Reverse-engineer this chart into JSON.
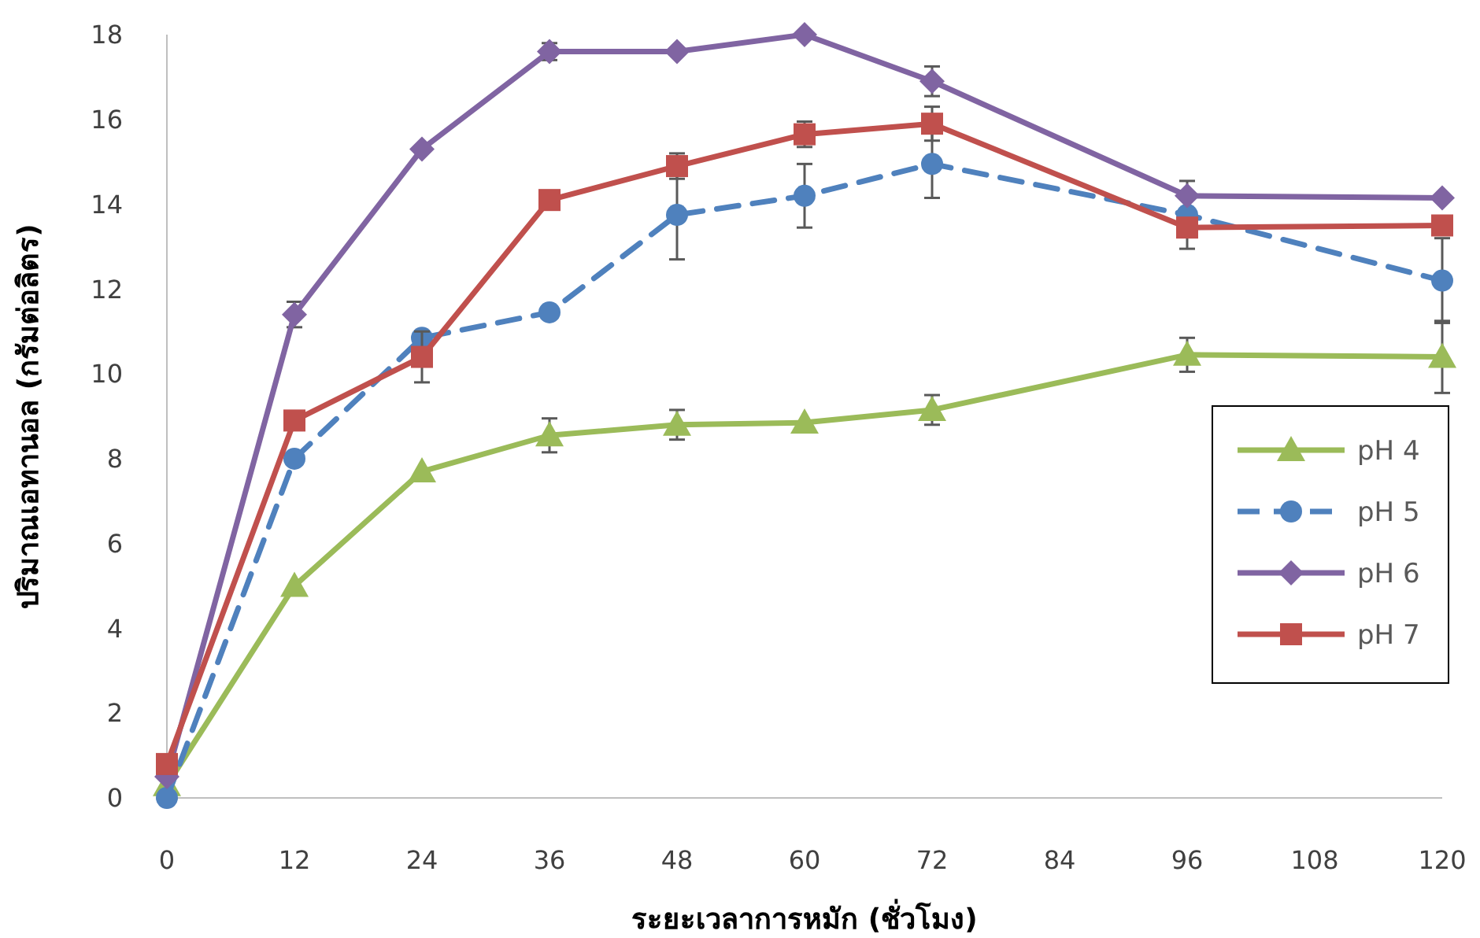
{
  "chart_data": {
    "type": "line",
    "xlabel": "ระยะเวลาการหมัก (ชั่วโมง)",
    "ylabel": "ปริมาณเอทานอล (กรัมต่อลิตร)",
    "x": [
      0,
      12,
      24,
      36,
      48,
      60,
      72,
      96,
      120
    ],
    "xlim": [
      0,
      120
    ],
    "xticks": [
      0,
      12,
      24,
      36,
      48,
      60,
      72,
      84,
      96,
      108,
      120
    ],
    "ylim": [
      0,
      18
    ],
    "yticks": [
      0,
      2,
      4,
      6,
      8,
      10,
      12,
      14,
      16,
      18
    ],
    "grid": false,
    "legend": "right",
    "series": [
      {
        "name": "pH 4",
        "color": "#9bbb59",
        "marker": "triangle",
        "line_style": "solid",
        "values": [
          0.3,
          5.0,
          7.7,
          8.55,
          8.8,
          8.85,
          9.15,
          10.45,
          10.4
        ],
        "errors": [
          null,
          null,
          null,
          0.4,
          0.35,
          null,
          0.35,
          0.4,
          0.85
        ]
      },
      {
        "name": "pH 5",
        "color": "#4f81bd",
        "marker": "circle",
        "line_style": "dashed",
        "values": [
          0,
          8.0,
          10.85,
          11.45,
          13.75,
          14.2,
          14.95,
          13.75,
          12.2
        ],
        "errors": [
          null,
          null,
          null,
          null,
          1.05,
          0.75,
          0.8,
          0.8,
          1.0
        ]
      },
      {
        "name": "pH 6",
        "color": "#8064a2",
        "marker": "diamond",
        "line_style": "solid",
        "values": [
          0.5,
          11.4,
          15.3,
          17.6,
          17.6,
          18.0,
          16.9,
          14.2,
          14.15
        ],
        "errors": [
          null,
          0.3,
          null,
          0.2,
          null,
          null,
          0.35,
          null,
          null
        ]
      },
      {
        "name": "pH 7",
        "color": "#c0504d",
        "marker": "square",
        "line_style": "solid",
        "values": [
          0.8,
          8.9,
          10.4,
          14.1,
          14.9,
          15.65,
          15.9,
          13.45,
          13.5
        ],
        "errors": [
          null,
          null,
          0.6,
          null,
          0.3,
          0.3,
          0.4,
          null,
          null
        ]
      }
    ]
  }
}
